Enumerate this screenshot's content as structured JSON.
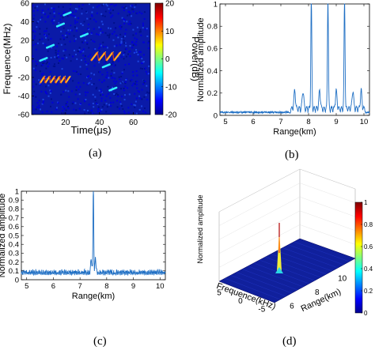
{
  "panels": {
    "a": {
      "caption": "(a)",
      "chart_data": {
        "type": "heatmap",
        "xlabel": "Time(μs)",
        "ylabel": "Frequence(MHz)",
        "colorbar_label": "Power(dB)",
        "xlim": [
          0,
          70
        ],
        "ylim": [
          -60,
          60
        ],
        "xticks": [
          20,
          40,
          60
        ],
        "yticks": [
          -60,
          -40,
          -20,
          0,
          20,
          40,
          60
        ],
        "colorbar_ticks": [
          20,
          10,
          0,
          -10,
          -20
        ],
        "colorbar_range": [
          -20,
          20
        ],
        "chirps_cyan": [
          {
            "x0": 15,
            "y0": 35,
            "x1": 19,
            "y1": 38
          },
          {
            "x0": 19,
            "y0": 47,
            "x1": 23,
            "y1": 50
          },
          {
            "x0": 29,
            "y0": 24,
            "x1": 33,
            "y1": 27
          },
          {
            "x0": 9,
            "y0": 12,
            "x1": 13,
            "y1": 15
          },
          {
            "x0": 42,
            "y0": -9,
            "x1": 46,
            "y1": -6
          },
          {
            "x0": 46,
            "y0": -34,
            "x1": 50,
            "y1": -31
          },
          {
            "x0": 5,
            "y0": -2,
            "x1": 9,
            "y1": 1
          }
        ],
        "chirp_trains": [
          {
            "x_start": 35,
            "count": 4,
            "period": 4.5,
            "y_low": -2,
            "y_high": 7
          },
          {
            "x_start": 5,
            "count": 6,
            "period": 3.0,
            "y_low": -26,
            "y_high": -19
          }
        ]
      }
    },
    "b": {
      "caption": "(b)",
      "chart_data": {
        "type": "line",
        "xlabel": "Range(km)",
        "ylabel": "Normalized amplitude",
        "xlim": [
          4.8,
          10.2
        ],
        "ylim": [
          0,
          1
        ],
        "xticks": [
          5,
          6,
          7,
          8,
          9,
          10
        ],
        "yticks": [
          0,
          0.2,
          0.4,
          0.6,
          0.8,
          1
        ],
        "peaks": [
          8.1,
          8.7,
          9.3
        ],
        "sidelobes": [
          7.5,
          7.8,
          8.4,
          9.0,
          9.6,
          9.9
        ],
        "noise_floor": 0.02
      }
    },
    "c": {
      "caption": "(c)",
      "chart_data": {
        "type": "line",
        "xlabel": "Range(km)",
        "ylabel": "Normalized amplitude",
        "xlim": [
          4.8,
          10.2
        ],
        "ylim": [
          0,
          1
        ],
        "xticks": [
          5,
          6,
          7,
          8,
          9,
          10
        ],
        "yticks": [
          0,
          0.1,
          0.2,
          0.3,
          0.4,
          0.5,
          0.6,
          0.7,
          0.8,
          0.9,
          1
        ],
        "peaks": [
          7.5
        ],
        "noise_floor": 0.05
      }
    },
    "d": {
      "caption": "(d)",
      "chart_data": {
        "type": "surface",
        "xlabel": "Range(km)",
        "ylabel": "Frequence(kHz)",
        "zlabel": "Normalized amplitude",
        "range_ticks": [
          6,
          8,
          10
        ],
        "freq_ticks": [
          5,
          0,
          -5
        ],
        "colorbar_ticks": [
          1,
          0.8,
          0.6,
          0.4,
          0.2,
          0
        ],
        "peak": {
          "range": 7.5,
          "freq": 0,
          "value": 1
        }
      }
    }
  }
}
